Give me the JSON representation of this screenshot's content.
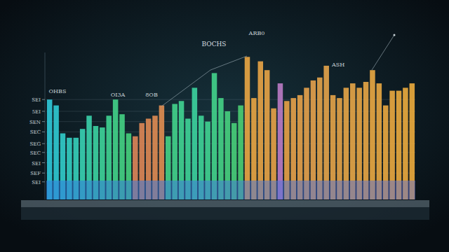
{
  "chart_data": {
    "type": "bar",
    "title": "BOCHS",
    "annotations": [
      "ARB0",
      "ASH",
      "OHBS",
      "OI3A",
      "8OB"
    ],
    "categories": [
      null,
      null,
      null,
      null,
      null,
      null,
      null,
      null,
      null,
      null,
      null,
      null,
      null,
      null,
      null,
      null,
      null,
      null,
      null,
      null,
      null,
      null,
      null,
      null,
      null,
      null,
      null,
      null,
      null,
      null,
      null,
      null,
      null,
      null,
      null,
      null,
      null,
      null,
      null,
      null,
      null,
      null,
      null,
      null,
      null,
      null,
      null,
      null,
      null,
      null,
      null,
      null,
      null,
      null,
      null,
      null
    ],
    "values": [
      68,
      64,
      45,
      42,
      42,
      48,
      57,
      50,
      49,
      57,
      68,
      58,
      45,
      43,
      52,
      55,
      57,
      64,
      43,
      65,
      67,
      55,
      76,
      57,
      53,
      86,
      69,
      60,
      52,
      64,
      97,
      69,
      94,
      88,
      62,
      79,
      67,
      69,
      71,
      76,
      81,
      83,
      91,
      71,
      69,
      76,
      79,
      76,
      80,
      88,
      79,
      64,
      74,
      74,
      76,
      79
    ],
    "colors": [
      "#2fc6d6",
      "#2fc8d0",
      "#31cac8",
      "#33ccc0",
      "#35cdb8",
      "#37ceb0",
      "#39cfa8",
      "#3bd0a0",
      "#3dd098",
      "#3fd090",
      "#41d088",
      "#43cf82",
      "#45ce7c",
      "#d98458",
      "#da8656",
      "#db8854",
      "#dc8a52",
      "#dd8c50",
      "#44cf84",
      "#42d08a",
      "#40d090",
      "#3ed096",
      "#3ccf9c",
      "#3ed096",
      "#40d090",
      "#42d08a",
      "#44cf84",
      "#46ce7e",
      "#48cd78",
      "#4acc72",
      "#e6a443",
      "#e6a443",
      "#e5a245",
      "#e5a245",
      "#e4a047",
      "#b87ac2",
      "#e4a047",
      "#e3a04a",
      "#e3a04a",
      "#e2a04c",
      "#e2a04c",
      "#e1a24a",
      "#e1a24a",
      "#e2a248",
      "#e2a248",
      "#e3a446",
      "#e3a446",
      "#e4a444",
      "#e4a444",
      "#e5a642",
      "#e5a642",
      "#e6a640",
      "#e6a640",
      "#e7a83e",
      "#e7a83e",
      "#e8a83c"
    ],
    "ylim": [
      0,
      100
    ],
    "yticks": [
      {
        "value": 12,
        "label": "SEI"
      },
      {
        "value": 18,
        "label": "SEF"
      },
      {
        "value": 25,
        "label": "SEI"
      },
      {
        "value": 32,
        "label": "SEC"
      },
      {
        "value": 38,
        "label": "SEG"
      },
      {
        "value": 46,
        "label": "SEC"
      },
      {
        "value": 53,
        "label": "SEN"
      },
      {
        "value": 60,
        "label": "5EI"
      },
      {
        "value": 68,
        "label": "SEI"
      }
    ],
    "grid": true
  }
}
